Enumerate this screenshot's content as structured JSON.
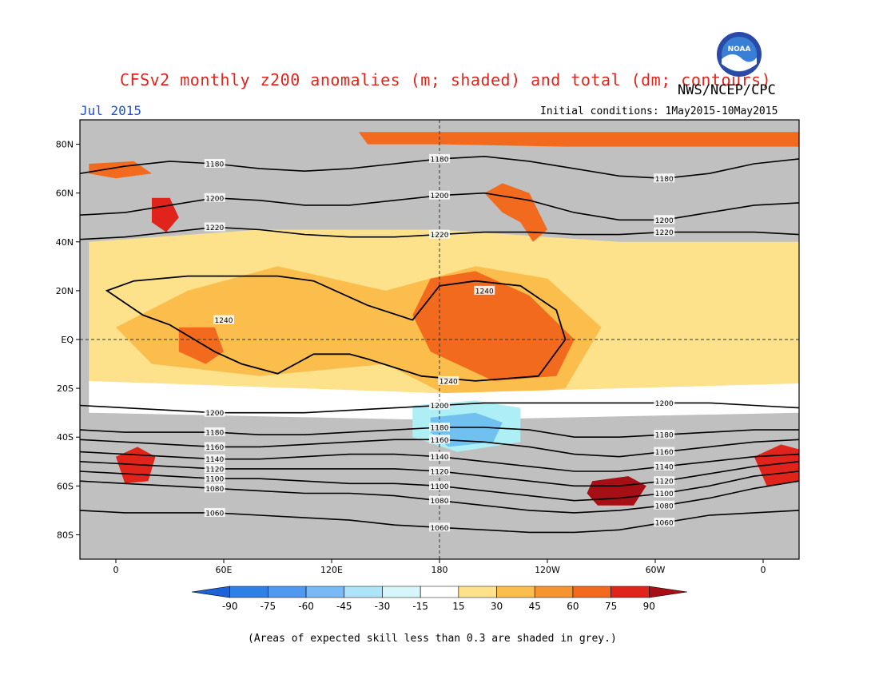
{
  "header": {
    "title": "CFSv2 monthly z200 anomalies (m; shaded) and total (dm; contours)",
    "agency": "NWS/NCEP/CPC",
    "month": "Jul 2015",
    "initial_conditions": "Initial conditions: 1May2015-10May2015"
  },
  "logo": {
    "text": "NOAA"
  },
  "footnote": "(Areas of expected skill less than 0.3 are shaded in grey.)",
  "map": {
    "lat_ticks": [
      {
        "lat": 80,
        "label": "80N"
      },
      {
        "lat": 60,
        "label": "60N"
      },
      {
        "lat": 40,
        "label": "40N"
      },
      {
        "lat": 20,
        "label": "20N"
      },
      {
        "lat": 0,
        "label": "EQ"
      },
      {
        "lat": -20,
        "label": "20S"
      },
      {
        "lat": -40,
        "label": "40S"
      },
      {
        "lat": -60,
        "label": "60S"
      },
      {
        "lat": -80,
        "label": "80S"
      }
    ],
    "lon_ticks": [
      {
        "lon": 0,
        "label": "0"
      },
      {
        "lon": 60,
        "label": "60E"
      },
      {
        "lon": 120,
        "label": "120E"
      },
      {
        "lon": 180,
        "label": "180"
      },
      {
        "lon": 240,
        "label": "120W"
      },
      {
        "lon": 300,
        "label": "60W"
      },
      {
        "lon": 360,
        "label": "0"
      }
    ],
    "lon_range": [
      -20,
      380
    ],
    "lat_range": [
      -90,
      90
    ],
    "skill_mask_color": "#c0c0c0",
    "contours": [
      {
        "label": "1180",
        "lats": [
          68,
          71,
          73,
          72,
          70,
          69,
          70,
          72,
          74,
          75,
          73,
          70,
          67,
          66,
          68,
          72,
          74
        ]
      },
      {
        "label": "1200",
        "lats": [
          51,
          52,
          55,
          58,
          57,
          55,
          55,
          57,
          59,
          60,
          57,
          52,
          49,
          49,
          52,
          55,
          56
        ]
      },
      {
        "label": "1220",
        "lats": [
          41,
          42,
          44,
          46,
          45,
          43,
          42,
          42,
          43,
          44,
          44,
          43,
          43,
          44,
          44,
          44,
          43
        ]
      },
      {
        "label": "1200",
        "lats": [
          -27,
          -28,
          -29,
          -30,
          -30,
          -30,
          -29,
          -28,
          -27,
          -26,
          -26,
          -26,
          -26,
          -26,
          -26,
          -27,
          -28
        ]
      },
      {
        "label": "1180",
        "lats": [
          -37,
          -38,
          -38,
          -38,
          -39,
          -39,
          -38,
          -37,
          -36,
          -36,
          -37,
          -40,
          -40,
          -39,
          -38,
          -37,
          -37
        ]
      },
      {
        "label": "1160",
        "lats": [
          -41,
          -42,
          -43,
          -44,
          -44,
          -43,
          -42,
          -41,
          -41,
          -42,
          -44,
          -47,
          -48,
          -46,
          -44,
          -42,
          -41
        ]
      },
      {
        "label": "1140",
        "lats": [
          -46,
          -47,
          -48,
          -49,
          -49,
          -48,
          -47,
          -47,
          -48,
          -50,
          -52,
          -54,
          -54,
          -52,
          -50,
          -48,
          -47
        ]
      },
      {
        "label": "1120",
        "lats": [
          -50,
          -51,
          -52,
          -53,
          -53,
          -53,
          -53,
          -53,
          -54,
          -56,
          -58,
          -60,
          -60,
          -58,
          -55,
          -52,
          -50
        ]
      },
      {
        "label": "1100",
        "lats": [
          -54,
          -55,
          -56,
          -57,
          -57,
          -58,
          -59,
          -59,
          -60,
          -62,
          -64,
          -66,
          -65,
          -63,
          -60,
          -56,
          -54
        ]
      },
      {
        "label": "1080",
        "lats": [
          -58,
          -59,
          -60,
          -61,
          -62,
          -63,
          -63,
          -64,
          -66,
          -68,
          -70,
          -71,
          -70,
          -68,
          -65,
          -61,
          -58
        ]
      },
      {
        "label": "1060",
        "lats": [
          -70,
          -71,
          -71,
          -71,
          -72,
          -73,
          -74,
          -76,
          -77,
          -78,
          -79,
          -79,
          -78,
          -75,
          -72,
          -71,
          -70
        ]
      }
    ],
    "closed_contours": [
      {
        "label": "1240",
        "points": [
          [
            -5,
            20
          ],
          [
            10,
            24
          ],
          [
            40,
            26
          ],
          [
            70,
            26
          ],
          [
            90,
            26
          ],
          [
            110,
            24
          ],
          [
            140,
            14
          ],
          [
            165,
            8
          ],
          [
            180,
            22
          ],
          [
            200,
            24
          ],
          [
            225,
            22
          ],
          [
            245,
            12
          ],
          [
            250,
            0
          ],
          [
            235,
            -15
          ],
          [
            200,
            -17
          ],
          [
            170,
            -15
          ],
          [
            140,
            -8
          ],
          [
            130,
            -6
          ],
          [
            110,
            -6
          ],
          [
            90,
            -14
          ],
          [
            70,
            -10
          ],
          [
            55,
            -5
          ],
          [
            30,
            6
          ],
          [
            15,
            10
          ],
          [
            -5,
            20
          ]
        ]
      }
    ],
    "anomaly_shading": [
      {
        "value": 30,
        "color": "#fde28b",
        "points": [
          [
            -15,
            40
          ],
          [
            80,
            45
          ],
          [
            180,
            45
          ],
          [
            280,
            40
          ],
          [
            380,
            40
          ],
          [
            380,
            -18
          ],
          [
            180,
            -22
          ],
          [
            -15,
            -18
          ]
        ]
      },
      {
        "value": 45,
        "color": "#fbbe4c",
        "points": [
          [
            0,
            5
          ],
          [
            40,
            20
          ],
          [
            90,
            30
          ],
          [
            150,
            20
          ],
          [
            200,
            30
          ],
          [
            240,
            25
          ],
          [
            270,
            5
          ],
          [
            250,
            -20
          ],
          [
            190,
            -25
          ],
          [
            150,
            -10
          ],
          [
            80,
            -15
          ],
          [
            20,
            -10
          ]
        ]
      },
      {
        "value": 60,
        "color": "#f26a1e",
        "points": [
          [
            175,
            25
          ],
          [
            200,
            28
          ],
          [
            230,
            18
          ],
          [
            255,
            0
          ],
          [
            245,
            -15
          ],
          [
            210,
            -17
          ],
          [
            175,
            -5
          ],
          [
            165,
            10
          ]
        ]
      },
      {
        "value": 60,
        "color": "#f26a1e",
        "points": [
          [
            35,
            5
          ],
          [
            55,
            5
          ],
          [
            60,
            -5
          ],
          [
            50,
            -10
          ],
          [
            35,
            -5
          ]
        ]
      },
      {
        "value": 60,
        "color": "#f26a1e",
        "points": [
          [
            135,
            85
          ],
          [
            380,
            85
          ],
          [
            380,
            79
          ],
          [
            250,
            79
          ],
          [
            180,
            80
          ],
          [
            140,
            80
          ]
        ]
      },
      {
        "value": 60,
        "color": "#f26a1e",
        "points": [
          [
            -15,
            72
          ],
          [
            10,
            73
          ],
          [
            20,
            68
          ],
          [
            0,
            66
          ],
          [
            -15,
            68
          ]
        ]
      },
      {
        "value": 60,
        "color": "#f26a1e",
        "points": [
          [
            205,
            60
          ],
          [
            215,
            64
          ],
          [
            230,
            60
          ],
          [
            240,
            45
          ],
          [
            232,
            40
          ],
          [
            225,
            48
          ],
          [
            215,
            52
          ]
        ]
      },
      {
        "value": 75,
        "color": "#e0241b",
        "points": [
          [
            20,
            58
          ],
          [
            30,
            58
          ],
          [
            35,
            50
          ],
          [
            28,
            44
          ],
          [
            20,
            48
          ]
        ]
      },
      {
        "value": 75,
        "color": "#e0241b",
        "points": [
          [
            0,
            -48
          ],
          [
            12,
            -44
          ],
          [
            22,
            -48
          ],
          [
            18,
            -58
          ],
          [
            5,
            -59
          ]
        ]
      },
      {
        "value": 75,
        "color": "#e0241b",
        "points": [
          [
            355,
            -48
          ],
          [
            370,
            -43
          ],
          [
            380,
            -45
          ],
          [
            380,
            -58
          ],
          [
            362,
            -60
          ]
        ]
      },
      {
        "value": 90,
        "color": "#a50f15",
        "points": [
          [
            265,
            -58
          ],
          [
            285,
            -56
          ],
          [
            295,
            -60
          ],
          [
            288,
            -68
          ],
          [
            268,
            -68
          ],
          [
            262,
            -63
          ]
        ]
      },
      {
        "value": 0,
        "color": "#ffffff",
        "points": [
          [
            -15,
            -17
          ],
          [
            180,
            -22
          ],
          [
            380,
            -18
          ],
          [
            380,
            -30
          ],
          [
            180,
            -33
          ],
          [
            -15,
            -30
          ]
        ]
      },
      {
        "value": -30,
        "color": "#aeeef5",
        "points": [
          [
            165,
            -27
          ],
          [
            200,
            -25
          ],
          [
            225,
            -28
          ],
          [
            225,
            -42
          ],
          [
            190,
            -46
          ],
          [
            165,
            -40
          ]
        ]
      },
      {
        "value": -45,
        "color": "#70c0f0",
        "points": [
          [
            175,
            -32
          ],
          [
            200,
            -30
          ],
          [
            215,
            -34
          ],
          [
            210,
            -42
          ],
          [
            185,
            -44
          ],
          [
            175,
            -38
          ]
        ]
      }
    ]
  },
  "colorbar": {
    "labels": [
      "-90",
      "-75",
      "-60",
      "-45",
      "-30",
      "-15",
      "15",
      "30",
      "45",
      "60",
      "75",
      "90"
    ],
    "colors": [
      "#1b63d6",
      "#2e7fe6",
      "#4f9af0",
      "#79b9f6",
      "#aee4f8",
      "#d6f6fb",
      "#ffffff",
      "#fde28b",
      "#fbbe4c",
      "#f69432",
      "#f26a1e",
      "#e0241b",
      "#a50f15"
    ]
  }
}
